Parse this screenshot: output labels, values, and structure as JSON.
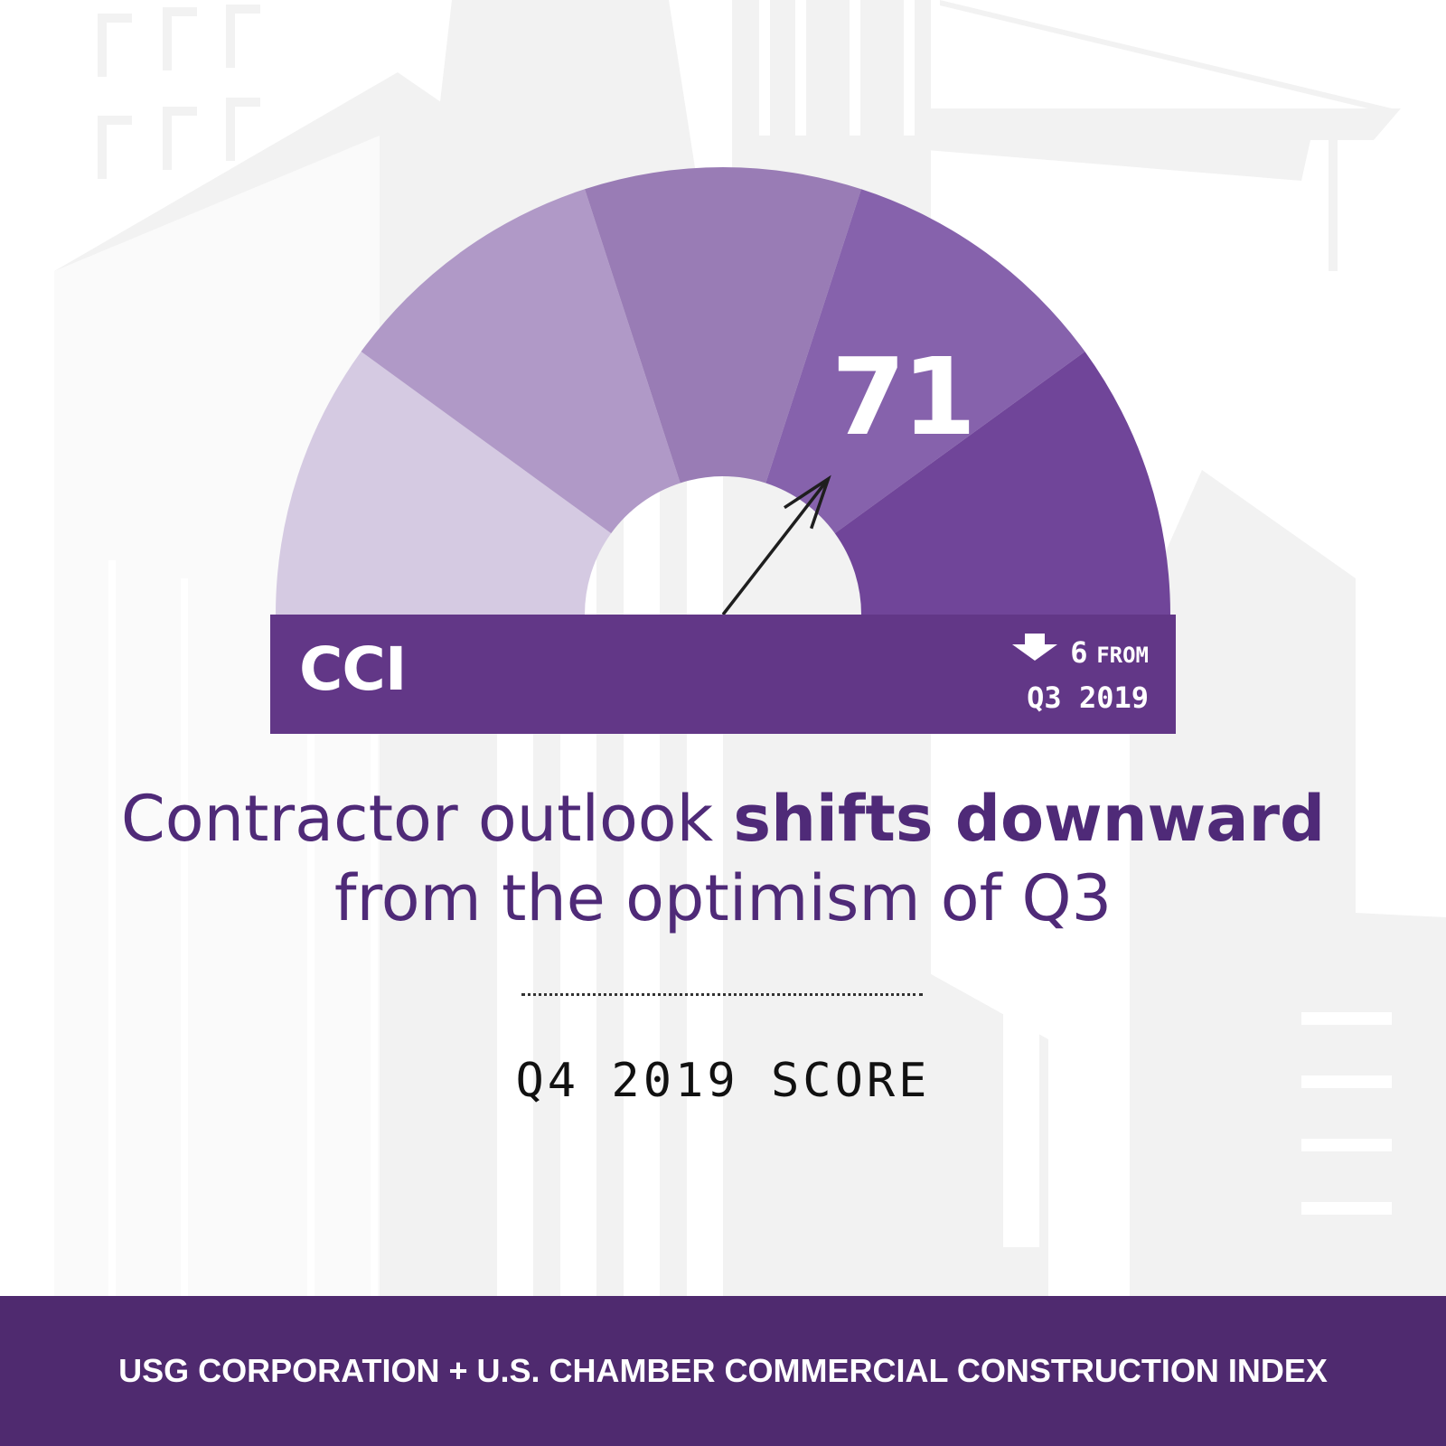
{
  "gauge": {
    "label": "CCI",
    "value": "71",
    "value_numeric": 71,
    "range": [
      0,
      100
    ],
    "change_direction": "down",
    "change_amount": "6",
    "change_from": "FROM",
    "change_period": "Q3 2019",
    "segment_colors": [
      "#d4c8e1",
      "#ad96c5",
      "#9678b3",
      "#825da9",
      "#6b3f96"
    ],
    "panel_color": "#623787"
  },
  "headline": {
    "part1": "Contractor outlook ",
    "part2": "shifts downward",
    "line2": "from the optimism of Q3"
  },
  "score_label": "Q4 2019 SCORE",
  "footer": {
    "text": "USG CORPORATION + U.S. CHAMBER COMMERCIAL CONSTRUCTION INDEX",
    "color": "#4f2a6f"
  },
  "background": {
    "illustration": "construction-buildings-crane",
    "color": "#f2f2f2"
  }
}
